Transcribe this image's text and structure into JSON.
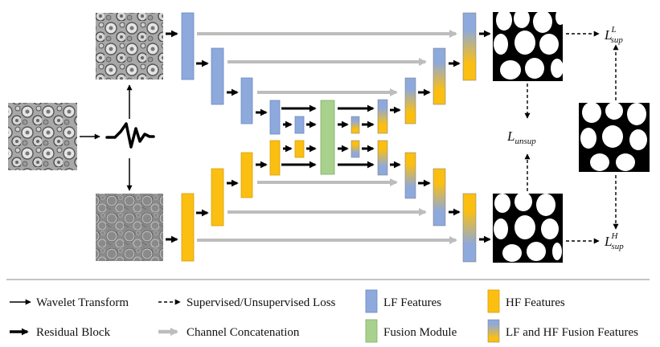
{
  "colors": {
    "lf": "#8ea9dc",
    "lf_border": "#6d89c2",
    "hf": "#fbbf12",
    "hf_border": "#d9a007",
    "fusion": "#a9d18e",
    "fusion_border": "#7fae62",
    "concat": "#bdbdbd",
    "arrow": "#000000"
  },
  "icons": {
    "wavelet": "wavelet-waveform-icon"
  },
  "labels": {
    "loss_top_main": "L",
    "loss_top_sub": "sup",
    "loss_top_sup": "L",
    "loss_unsup_main": "L",
    "loss_unsup_sub": "unsup",
    "loss_bottom_main": "L",
    "loss_bottom_sub": "sup",
    "loss_bottom_sup": "H"
  },
  "legend": {
    "wavelet_transform": "Wavelet Transform",
    "loss": "Supervised/Unsupervised Loss",
    "lf_features": "LF Features",
    "hf_features": "HF Features",
    "residual_block": "Residual Block",
    "concat": "Channel Concatenation",
    "fusion_module": "Fusion Module",
    "lf_hf_fusion": "LF and HF Fusion Features"
  }
}
